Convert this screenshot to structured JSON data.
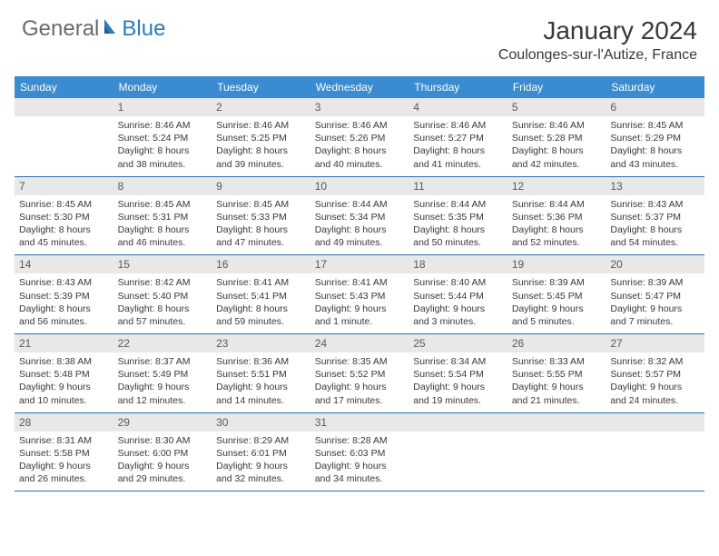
{
  "logo": {
    "part1": "General",
    "part2": "Blue"
  },
  "title": "January 2024",
  "location": "Coulonges-sur-l'Autize, France",
  "colors": {
    "header_bg": "#3a8bcf",
    "header_fg": "#ffffff",
    "daynum_bg": "#e8e8e8",
    "daynum_fg": "#595959",
    "border": "#2a6fa8",
    "body_fg": "#383838",
    "logo_gray": "#6a6a6a",
    "logo_blue": "#2a7bbf"
  },
  "day_headers": [
    "Sunday",
    "Monday",
    "Tuesday",
    "Wednesday",
    "Thursday",
    "Friday",
    "Saturday"
  ],
  "weeks": [
    [
      {
        "n": "",
        "lines": []
      },
      {
        "n": "1",
        "lines": [
          "Sunrise: 8:46 AM",
          "Sunset: 5:24 PM",
          "Daylight: 8 hours",
          "and 38 minutes."
        ]
      },
      {
        "n": "2",
        "lines": [
          "Sunrise: 8:46 AM",
          "Sunset: 5:25 PM",
          "Daylight: 8 hours",
          "and 39 minutes."
        ]
      },
      {
        "n": "3",
        "lines": [
          "Sunrise: 8:46 AM",
          "Sunset: 5:26 PM",
          "Daylight: 8 hours",
          "and 40 minutes."
        ]
      },
      {
        "n": "4",
        "lines": [
          "Sunrise: 8:46 AM",
          "Sunset: 5:27 PM",
          "Daylight: 8 hours",
          "and 41 minutes."
        ]
      },
      {
        "n": "5",
        "lines": [
          "Sunrise: 8:46 AM",
          "Sunset: 5:28 PM",
          "Daylight: 8 hours",
          "and 42 minutes."
        ]
      },
      {
        "n": "6",
        "lines": [
          "Sunrise: 8:45 AM",
          "Sunset: 5:29 PM",
          "Daylight: 8 hours",
          "and 43 minutes."
        ]
      }
    ],
    [
      {
        "n": "7",
        "lines": [
          "Sunrise: 8:45 AM",
          "Sunset: 5:30 PM",
          "Daylight: 8 hours",
          "and 45 minutes."
        ]
      },
      {
        "n": "8",
        "lines": [
          "Sunrise: 8:45 AM",
          "Sunset: 5:31 PM",
          "Daylight: 8 hours",
          "and 46 minutes."
        ]
      },
      {
        "n": "9",
        "lines": [
          "Sunrise: 8:45 AM",
          "Sunset: 5:33 PM",
          "Daylight: 8 hours",
          "and 47 minutes."
        ]
      },
      {
        "n": "10",
        "lines": [
          "Sunrise: 8:44 AM",
          "Sunset: 5:34 PM",
          "Daylight: 8 hours",
          "and 49 minutes."
        ]
      },
      {
        "n": "11",
        "lines": [
          "Sunrise: 8:44 AM",
          "Sunset: 5:35 PM",
          "Daylight: 8 hours",
          "and 50 minutes."
        ]
      },
      {
        "n": "12",
        "lines": [
          "Sunrise: 8:44 AM",
          "Sunset: 5:36 PM",
          "Daylight: 8 hours",
          "and 52 minutes."
        ]
      },
      {
        "n": "13",
        "lines": [
          "Sunrise: 8:43 AM",
          "Sunset: 5:37 PM",
          "Daylight: 8 hours",
          "and 54 minutes."
        ]
      }
    ],
    [
      {
        "n": "14",
        "lines": [
          "Sunrise: 8:43 AM",
          "Sunset: 5:39 PM",
          "Daylight: 8 hours",
          "and 56 minutes."
        ]
      },
      {
        "n": "15",
        "lines": [
          "Sunrise: 8:42 AM",
          "Sunset: 5:40 PM",
          "Daylight: 8 hours",
          "and 57 minutes."
        ]
      },
      {
        "n": "16",
        "lines": [
          "Sunrise: 8:41 AM",
          "Sunset: 5:41 PM",
          "Daylight: 8 hours",
          "and 59 minutes."
        ]
      },
      {
        "n": "17",
        "lines": [
          "Sunrise: 8:41 AM",
          "Sunset: 5:43 PM",
          "Daylight: 9 hours",
          "and 1 minute."
        ]
      },
      {
        "n": "18",
        "lines": [
          "Sunrise: 8:40 AM",
          "Sunset: 5:44 PM",
          "Daylight: 9 hours",
          "and 3 minutes."
        ]
      },
      {
        "n": "19",
        "lines": [
          "Sunrise: 8:39 AM",
          "Sunset: 5:45 PM",
          "Daylight: 9 hours",
          "and 5 minutes."
        ]
      },
      {
        "n": "20",
        "lines": [
          "Sunrise: 8:39 AM",
          "Sunset: 5:47 PM",
          "Daylight: 9 hours",
          "and 7 minutes."
        ]
      }
    ],
    [
      {
        "n": "21",
        "lines": [
          "Sunrise: 8:38 AM",
          "Sunset: 5:48 PM",
          "Daylight: 9 hours",
          "and 10 minutes."
        ]
      },
      {
        "n": "22",
        "lines": [
          "Sunrise: 8:37 AM",
          "Sunset: 5:49 PM",
          "Daylight: 9 hours",
          "and 12 minutes."
        ]
      },
      {
        "n": "23",
        "lines": [
          "Sunrise: 8:36 AM",
          "Sunset: 5:51 PM",
          "Daylight: 9 hours",
          "and 14 minutes."
        ]
      },
      {
        "n": "24",
        "lines": [
          "Sunrise: 8:35 AM",
          "Sunset: 5:52 PM",
          "Daylight: 9 hours",
          "and 17 minutes."
        ]
      },
      {
        "n": "25",
        "lines": [
          "Sunrise: 8:34 AM",
          "Sunset: 5:54 PM",
          "Daylight: 9 hours",
          "and 19 minutes."
        ]
      },
      {
        "n": "26",
        "lines": [
          "Sunrise: 8:33 AM",
          "Sunset: 5:55 PM",
          "Daylight: 9 hours",
          "and 21 minutes."
        ]
      },
      {
        "n": "27",
        "lines": [
          "Sunrise: 8:32 AM",
          "Sunset: 5:57 PM",
          "Daylight: 9 hours",
          "and 24 minutes."
        ]
      }
    ],
    [
      {
        "n": "28",
        "lines": [
          "Sunrise: 8:31 AM",
          "Sunset: 5:58 PM",
          "Daylight: 9 hours",
          "and 26 minutes."
        ]
      },
      {
        "n": "29",
        "lines": [
          "Sunrise: 8:30 AM",
          "Sunset: 6:00 PM",
          "Daylight: 9 hours",
          "and 29 minutes."
        ]
      },
      {
        "n": "30",
        "lines": [
          "Sunrise: 8:29 AM",
          "Sunset: 6:01 PM",
          "Daylight: 9 hours",
          "and 32 minutes."
        ]
      },
      {
        "n": "31",
        "lines": [
          "Sunrise: 8:28 AM",
          "Sunset: 6:03 PM",
          "Daylight: 9 hours",
          "and 34 minutes."
        ]
      },
      {
        "n": "",
        "lines": []
      },
      {
        "n": "",
        "lines": []
      },
      {
        "n": "",
        "lines": []
      }
    ]
  ]
}
